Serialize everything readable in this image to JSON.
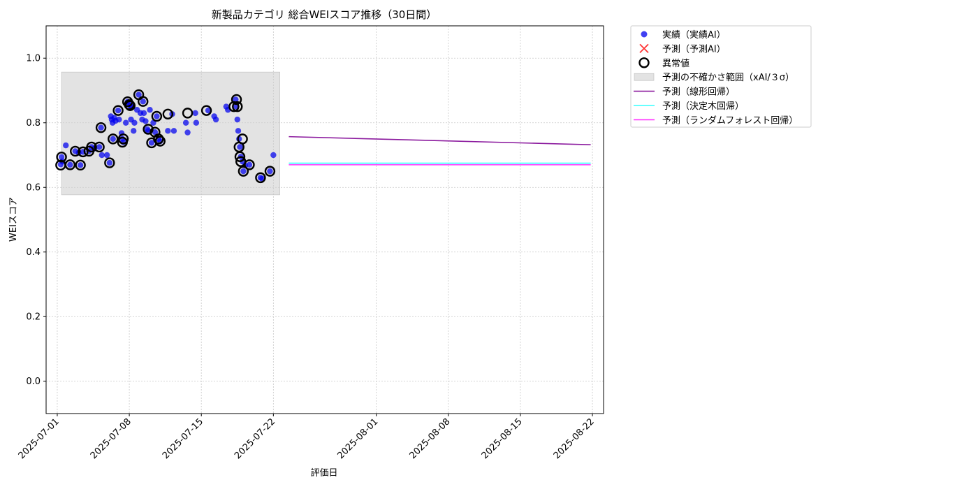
{
  "chart_data": {
    "type": "scatter",
    "title": "新製品カテゴリ 総合WEIスコア推移（30日間）",
    "xlabel": "評価日",
    "ylabel": "WEIスコア",
    "xlim": [
      "2025-06-29T22:00",
      "2025-08-23T02:00"
    ],
    "ylim": [
      -0.1,
      1.1
    ],
    "x_ticks": [
      "2025-07-01",
      "2025-07-08",
      "2025-07-15",
      "2025-07-22",
      "2025-08-01",
      "2025-08-08",
      "2025-08-15",
      "2025-08-22"
    ],
    "y_ticks": [
      0.0,
      0.2,
      0.4,
      0.6,
      0.8,
      1.0
    ],
    "grid": true,
    "legend_position": "outside upper-right",
    "uncertainty_band": {
      "x_start": "2025-07-01T10:00",
      "x_end": "2025-07-22T15:00",
      "y_low": 0.577,
      "y_high": 0.957
    },
    "series": [
      {
        "name": "実績（実績AI）",
        "kind": "scatter",
        "color": "#0000ee",
        "points": [
          [
            "2025-07-01T08:00",
            0.671
          ],
          [
            "2025-07-01T10:00",
            0.694
          ],
          [
            "2025-07-01T12:00",
            0.68
          ],
          [
            "2025-07-01T20:00",
            0.73
          ],
          [
            "2025-07-02T06:00",
            0.67
          ],
          [
            "2025-07-02T18:00",
            0.712
          ],
          [
            "2025-07-03T02:00",
            0.707
          ],
          [
            "2025-07-03T06:00",
            0.669
          ],
          [
            "2025-07-03T12:00",
            0.71
          ],
          [
            "2025-07-04T02:00",
            0.712
          ],
          [
            "2025-07-04T08:00",
            0.725
          ],
          [
            "2025-07-04T14:00",
            0.72
          ],
          [
            "2025-07-05T02:00",
            0.725
          ],
          [
            "2025-07-05T06:00",
            0.785
          ],
          [
            "2025-07-05T08:00",
            0.7
          ],
          [
            "2025-07-05T20:00",
            0.7
          ],
          [
            "2025-07-06T02:00",
            0.676
          ],
          [
            "2025-07-06T05:00",
            0.82
          ],
          [
            "2025-07-06T07:00",
            0.81
          ],
          [
            "2025-07-06T09:00",
            0.8
          ],
          [
            "2025-07-06T10:00",
            0.75
          ],
          [
            "2025-07-06T13:00",
            0.815
          ],
          [
            "2025-07-06T16:00",
            0.806
          ],
          [
            "2025-07-06T22:00",
            0.838
          ],
          [
            "2025-07-07T00:00",
            0.81
          ],
          [
            "2025-07-07T06:00",
            0.768
          ],
          [
            "2025-07-07T08:00",
            0.75
          ],
          [
            "2025-07-07T10:00",
            0.74
          ],
          [
            "2025-07-07T16:00",
            0.8
          ],
          [
            "2025-07-07T20:00",
            0.865
          ],
          [
            "2025-07-08T00:00",
            0.856
          ],
          [
            "2025-07-08T02:00",
            0.853
          ],
          [
            "2025-07-08T04:00",
            0.81
          ],
          [
            "2025-07-08T06:00",
            0.85
          ],
          [
            "2025-07-08T10:00",
            0.775
          ],
          [
            "2025-07-08T12:00",
            0.8
          ],
          [
            "2025-07-08T18:00",
            0.84
          ],
          [
            "2025-07-08T22:00",
            0.887
          ],
          [
            "2025-07-09T02:00",
            0.83
          ],
          [
            "2025-07-09T06:00",
            0.81
          ],
          [
            "2025-07-09T08:00",
            0.866
          ],
          [
            "2025-07-09T10:00",
            0.83
          ],
          [
            "2025-07-09T14:00",
            0.805
          ],
          [
            "2025-07-09T18:00",
            0.78
          ],
          [
            "2025-07-09T20:00",
            0.775
          ],
          [
            "2025-07-10T00:00",
            0.84
          ],
          [
            "2025-07-10T04:00",
            0.738
          ],
          [
            "2025-07-10T08:00",
            0.8
          ],
          [
            "2025-07-10T12:00",
            0.771
          ],
          [
            "2025-07-10T16:00",
            0.82
          ],
          [
            "2025-07-10T20:00",
            0.75
          ],
          [
            "2025-07-11T00:00",
            0.743
          ],
          [
            "2025-07-11T18:00",
            0.775
          ],
          [
            "2025-07-12T04:00",
            0.827
          ],
          [
            "2025-07-12T08:00",
            0.775
          ],
          [
            "2025-07-13T12:00",
            0.8
          ],
          [
            "2025-07-13T16:00",
            0.77
          ],
          [
            "2025-07-14T10:00",
            0.83
          ],
          [
            "2025-07-14T12:00",
            0.8
          ],
          [
            "2025-07-15T16:00",
            0.838
          ],
          [
            "2025-07-16T06:00",
            0.82
          ],
          [
            "2025-07-16T10:00",
            0.81
          ],
          [
            "2025-07-17T10:00",
            0.85
          ],
          [
            "2025-07-17T14:00",
            0.84
          ],
          [
            "2025-07-18T08:00",
            0.872
          ],
          [
            "2025-07-18T10:00",
            0.85
          ],
          [
            "2025-07-18T12:00",
            0.81
          ],
          [
            "2025-07-18T14:00",
            0.775
          ],
          [
            "2025-07-18T16:00",
            0.75
          ],
          [
            "2025-07-18T18:00",
            0.725
          ],
          [
            "2025-07-18T20:00",
            0.695
          ],
          [
            "2025-07-19T00:00",
            0.68
          ],
          [
            "2025-07-19T02:00",
            0.65
          ],
          [
            "2025-07-19T06:00",
            0.668
          ],
          [
            "2025-07-19T16:00",
            0.67
          ],
          [
            "2025-07-20T18:00",
            0.63
          ],
          [
            "2025-07-20T22:00",
            0.627
          ],
          [
            "2025-07-21T16:00",
            0.65
          ],
          [
            "2025-07-22T00:00",
            0.7
          ]
        ]
      },
      {
        "name": "予測（予測AI）",
        "kind": "scatter-x",
        "color": "#ff3333",
        "points": []
      },
      {
        "name": "異常値",
        "kind": "outlier-ring",
        "color": "#000000",
        "points": [
          [
            "2025-07-01T10:00",
            0.694
          ],
          [
            "2025-07-01T08:00",
            0.669
          ],
          [
            "2025-07-02T06:00",
            0.67
          ],
          [
            "2025-07-02T18:00",
            0.712
          ],
          [
            "2025-07-03T06:00",
            0.669
          ],
          [
            "2025-07-03T12:00",
            0.71
          ],
          [
            "2025-07-04T02:00",
            0.712
          ],
          [
            "2025-07-04T08:00",
            0.725
          ],
          [
            "2025-07-05T02:00",
            0.725
          ],
          [
            "2025-07-05T06:00",
            0.785
          ],
          [
            "2025-07-06T02:00",
            0.676
          ],
          [
            "2025-07-06T10:00",
            0.75
          ],
          [
            "2025-07-06T22:00",
            0.838
          ],
          [
            "2025-07-07T08:00",
            0.74
          ],
          [
            "2025-07-07T10:00",
            0.75
          ],
          [
            "2025-07-07T20:00",
            0.865
          ],
          [
            "2025-07-08T00:00",
            0.856
          ],
          [
            "2025-07-08T02:00",
            0.853
          ],
          [
            "2025-07-08T22:00",
            0.887
          ],
          [
            "2025-07-09T08:00",
            0.866
          ],
          [
            "2025-07-09T20:00",
            0.78
          ],
          [
            "2025-07-10T04:00",
            0.738
          ],
          [
            "2025-07-10T12:00",
            0.771
          ],
          [
            "2025-07-10T16:00",
            0.82
          ],
          [
            "2025-07-10T20:00",
            0.75
          ],
          [
            "2025-07-11T00:00",
            0.743
          ],
          [
            "2025-07-11T18:00",
            0.827
          ],
          [
            "2025-07-13T16:00",
            0.83
          ],
          [
            "2025-07-15T12:00",
            0.838
          ],
          [
            "2025-07-18T04:00",
            0.85
          ],
          [
            "2025-07-18T10:00",
            0.872
          ],
          [
            "2025-07-18T12:00",
            0.85
          ],
          [
            "2025-07-18T16:00",
            0.725
          ],
          [
            "2025-07-18T18:00",
            0.695
          ],
          [
            "2025-07-18T20:00",
            0.68
          ],
          [
            "2025-07-19T00:00",
            0.75
          ],
          [
            "2025-07-19T02:00",
            0.65
          ],
          [
            "2025-07-19T16:00",
            0.67
          ],
          [
            "2025-07-20T18:00",
            0.63
          ],
          [
            "2025-07-21T16:00",
            0.65
          ]
        ]
      }
    ],
    "forecast_lines": [
      {
        "name": "予測（線形回帰）",
        "color": "#8b1a9e",
        "points": [
          [
            "2025-07-23T12:00",
            0.757
          ],
          [
            "2025-08-21T20:00",
            0.732
          ]
        ]
      },
      {
        "name": "予測（決定木回帰）",
        "color": "#33ffff",
        "points": [
          [
            "2025-07-23T12:00",
            0.675
          ],
          [
            "2025-08-21T20:00",
            0.675
          ]
        ]
      },
      {
        "name": "予測（ランダムフォレスト回帰）",
        "color": "#ff33ff",
        "points": [
          [
            "2025-07-23T12:00",
            0.67
          ],
          [
            "2025-08-21T20:00",
            0.67
          ]
        ]
      }
    ],
    "legend": [
      {
        "label": "実績（実績AI）",
        "marker": "dot",
        "color": "#0000ee"
      },
      {
        "label": "予測（予測AI）",
        "marker": "x",
        "color": "#ff3333"
      },
      {
        "label": "異常値",
        "marker": "ring",
        "color": "#000000"
      },
      {
        "label": "予測の不確かさ範囲（xAI/３σ）",
        "marker": "band",
        "color": "#cccccc"
      },
      {
        "label": "予測（線形回帰）",
        "marker": "line",
        "color": "#8b1a9e"
      },
      {
        "label": "予測（決定木回帰）",
        "marker": "line",
        "color": "#33ffff"
      },
      {
        "label": "予測（ランダムフォレスト回帰）",
        "marker": "line",
        "color": "#ff33ff"
      }
    ]
  }
}
